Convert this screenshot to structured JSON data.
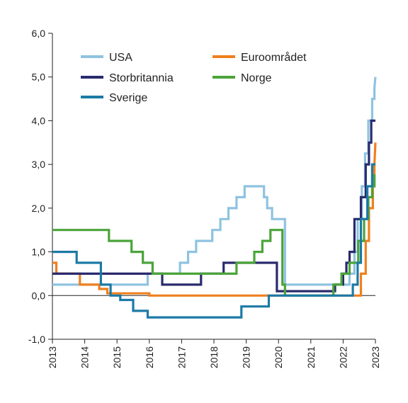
{
  "chart_data": {
    "type": "line",
    "title": "",
    "xlabel": "",
    "ylabel": "",
    "xlim": [
      2013,
      2023
    ],
    "ylim": [
      -1,
      6
    ],
    "x_ticks": [
      2013,
      2014,
      2015,
      2016,
      2017,
      2018,
      2019,
      2020,
      2021,
      2022,
      2023
    ],
    "x_tick_labels": [
      "2013",
      "2014",
      "2015",
      "2016",
      "2017",
      "2018",
      "2019",
      "2020",
      "2021",
      "2022",
      "2023"
    ],
    "y_ticks": [
      -1,
      0,
      1,
      2,
      3,
      4,
      5,
      6
    ],
    "y_tick_labels": [
      "-1,0",
      "0,0",
      "1,0",
      "2,0",
      "3,0",
      "4,0",
      "5,0",
      "6,0"
    ],
    "grid": false,
    "legend": {
      "placement": "top",
      "columns": 2
    },
    "series": [
      {
        "name": "USA",
        "color": "#8fc3e0",
        "x": [
          2013.0,
          2015.95,
          2015.95,
          2016.95,
          2016.95,
          2017.2,
          2017.2,
          2017.45,
          2017.45,
          2017.95,
          2017.95,
          2018.2,
          2018.2,
          2018.45,
          2018.45,
          2018.7,
          2018.7,
          2018.95,
          2018.95,
          2019.55,
          2019.55,
          2019.65,
          2019.65,
          2019.8,
          2019.8,
          2020.2,
          2020.2,
          2022.2,
          2022.2,
          2022.35,
          2022.35,
          2022.45,
          2022.45,
          2022.58,
          2022.58,
          2022.68,
          2022.68,
          2022.78,
          2022.78,
          2022.9,
          2022.9,
          2022.97,
          2022.97,
          2023.0
        ],
        "y": [
          0.25,
          0.25,
          0.5,
          0.5,
          0.75,
          0.75,
          1.0,
          1.0,
          1.25,
          1.25,
          1.5,
          1.5,
          1.75,
          1.75,
          2.0,
          2.0,
          2.25,
          2.25,
          2.5,
          2.5,
          2.25,
          2.25,
          2.0,
          2.0,
          1.75,
          1.75,
          0.25,
          0.25,
          0.5,
          0.5,
          1.0,
          1.0,
          1.75,
          1.75,
          2.5,
          2.5,
          3.25,
          3.25,
          4.0,
          4.0,
          4.5,
          4.5,
          4.75,
          5.0
        ]
      },
      {
        "name": "Euroområdet",
        "color": "#f07f1f",
        "x": [
          2013.0,
          2013.12,
          2013.12,
          2013.85,
          2013.85,
          2014.45,
          2014.45,
          2014.7,
          2014.7,
          2016.0,
          2016.0,
          2022.55,
          2022.55,
          2022.7,
          2022.7,
          2022.8,
          2022.8,
          2022.92,
          2022.92,
          2022.97,
          2022.97,
          2023.0
        ],
        "y": [
          0.75,
          0.75,
          0.5,
          0.5,
          0.25,
          0.25,
          0.15,
          0.15,
          0.05,
          0.05,
          0.0,
          0.0,
          0.5,
          0.5,
          1.25,
          1.25,
          2.0,
          2.0,
          2.5,
          2.5,
          3.0,
          3.5
        ]
      },
      {
        "name": "Storbritannia",
        "color": "#2a2a6e",
        "x": [
          2013.0,
          2016.4,
          2016.4,
          2017.6,
          2017.6,
          2018.3,
          2018.3,
          2019.95,
          2019.95,
          2021.75,
          2021.75,
          2022.0,
          2022.0,
          2022.1,
          2022.1,
          2022.2,
          2022.2,
          2022.35,
          2022.35,
          2022.55,
          2022.55,
          2022.7,
          2022.7,
          2022.8,
          2022.8,
          2022.87,
          2022.87,
          2023.0
        ],
        "y": [
          0.5,
          0.5,
          0.25,
          0.25,
          0.5,
          0.5,
          0.75,
          0.75,
          0.1,
          0.1,
          0.25,
          0.25,
          0.5,
          0.5,
          0.75,
          0.75,
          1.0,
          1.0,
          1.75,
          1.75,
          2.25,
          2.25,
          3.0,
          3.0,
          3.5,
          3.5,
          4.0,
          4.0
        ]
      },
      {
        "name": "Norge",
        "color": "#4ba43a",
        "x": [
          2013.0,
          2014.75,
          2014.75,
          2015.45,
          2015.45,
          2015.8,
          2015.8,
          2016.1,
          2016.1,
          2018.7,
          2018.7,
          2019.25,
          2019.25,
          2019.5,
          2019.5,
          2019.75,
          2019.75,
          2020.12,
          2020.12,
          2020.2,
          2020.2,
          2021.7,
          2021.7,
          2021.95,
          2021.95,
          2022.2,
          2022.2,
          2022.47,
          2022.47,
          2022.65,
          2022.65,
          2022.78,
          2022.78,
          2022.9,
          2022.9,
          2022.97,
          2022.97,
          2023.0
        ],
        "y": [
          1.5,
          1.5,
          1.25,
          1.25,
          1.0,
          1.0,
          0.75,
          0.75,
          0.5,
          0.5,
          0.75,
          0.75,
          1.0,
          1.0,
          1.25,
          1.25,
          1.5,
          1.5,
          0.25,
          0.25,
          0.0,
          0.0,
          0.25,
          0.25,
          0.5,
          0.5,
          0.75,
          0.75,
          1.25,
          1.25,
          1.75,
          1.75,
          2.25,
          2.25,
          2.5,
          2.5,
          2.75,
          2.75
        ]
      },
      {
        "name": "Sverige",
        "color": "#1c7aa6",
        "x": [
          2013.0,
          2013.75,
          2013.75,
          2014.5,
          2014.5,
          2014.8,
          2014.8,
          2015.1,
          2015.1,
          2015.5,
          2015.5,
          2015.95,
          2015.95,
          2018.85,
          2018.85,
          2019.7,
          2019.7,
          2022.3,
          2022.3,
          2022.45,
          2022.45,
          2022.55,
          2022.55,
          2022.75,
          2022.75,
          2022.9,
          2022.9,
          2023.0
        ],
        "y": [
          1.0,
          1.0,
          0.75,
          0.75,
          0.25,
          0.25,
          0.0,
          0.0,
          -0.1,
          -0.1,
          -0.35,
          -0.35,
          -0.5,
          -0.5,
          -0.25,
          -0.25,
          0.0,
          0.0,
          0.25,
          0.25,
          0.75,
          0.75,
          1.75,
          1.75,
          2.5,
          2.5,
          3.0,
          3.0
        ]
      }
    ]
  }
}
